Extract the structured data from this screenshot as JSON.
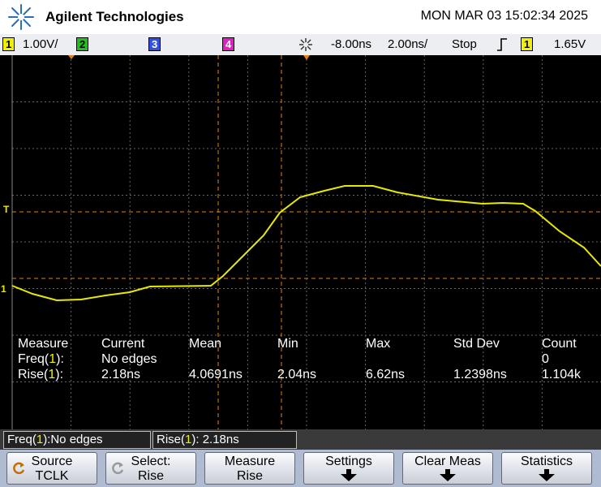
{
  "header": {
    "brand": "Agilent Technologies",
    "datetime": "MON MAR 03 15:02:34 2025"
  },
  "status_bar": {
    "ch1": "1",
    "ch1_scale": "1.00V/",
    "ch2": "2",
    "ch3": "3",
    "ch4": "4",
    "delay": "-8.00ns",
    "timebase": "2.00ns/",
    "run_state": "Stop",
    "trigger_source": "1",
    "trigger_level": "1.65V"
  },
  "screen": {
    "trigger_marker": "T",
    "ground_marker": "1"
  },
  "measurements": {
    "headers": [
      "Measure",
      "Current",
      "Mean",
      "Min",
      "Max",
      "Std Dev",
      "Count"
    ],
    "rows": [
      {
        "name": "Freq(",
        "channel": "1",
        "suffix": "):",
        "current": "No edges",
        "count": "0"
      },
      {
        "name": "Rise(",
        "channel": "1",
        "suffix": "):",
        "current": "2.18ns",
        "mean": "4.0691ns",
        "min": "2.04ns",
        "max": "6.62ns",
        "std_dev": "1.2398ns",
        "count": "1.104k"
      }
    ]
  },
  "readouts": [
    {
      "name": "Freq(",
      "channel": "1",
      "value": "):No edges"
    },
    {
      "name": "Rise(",
      "channel": "1",
      "value": "): 2.18ns"
    }
  ],
  "softkeys": [
    {
      "line1": "Source",
      "line2": "TCLK"
    },
    {
      "line1": "Select:",
      "line2": "Rise"
    },
    {
      "line1": "Measure",
      "line2": "Rise"
    },
    {
      "line1": "Settings"
    },
    {
      "line1": "Clear Meas"
    },
    {
      "line1": "Statistics"
    }
  ]
}
